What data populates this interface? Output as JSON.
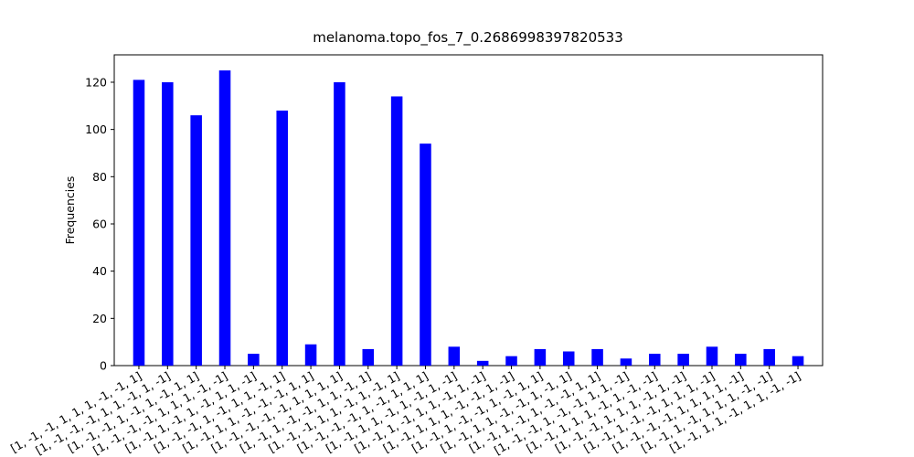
{
  "chart_data": {
    "type": "bar",
    "title": "melanoma.topo_fos_7_0.2686998397820533",
    "ylabel": "Frequencies",
    "categories": [
      "[1, -1, -1, 1, 1, 1, -1, -1, 1]",
      "[1, -1, -1, -1, 1, 1, -1, 1, -1]",
      "[1, -1, -1, 1, -1, 1, -1, 1, 1]",
      "[1, -1, -1, -1, 1, 1, 1, -1, -1]",
      "[1, -1, 1, -1, 1, -1, 1, 1, -1]",
      "[1, -1, -1, 1, -1, 1, 1, -1, 1]",
      "[1, -1, 1, 1, -1, -1, -1, 1, 1]",
      "[1, -1, -1, -1, -1, 1, 1, 1, 1]",
      "[1, -1, 1, -1, -1, 1, 1, -1, 1]",
      "[1, -1, -1, 1, 1, -1, 1, -1, 1]",
      "[1, -1, -1, -1, 1, -1, 1, 1, 1]",
      "[1, -1, 1, 1, -1, 1, -1, 1, -1]",
      "[1, -1, 1, -1, 1, 1, -1, 1, -1]",
      "[1, -1, 1, 1, 1, -1, -1, 1, -1]",
      "[1, -1, 1, -1, -1, 1, -1, 1, 1]",
      "[1, -1, 1, 1, -1, -1, 1, -1, 1]",
      "[1, -1, 1, -1, 1, -1, -1, 1, 1]",
      "[1, -1, -1, 1, -1, -1, 1, 1, -1]",
      "[1, -1, 1, 1, 1, -1, 1, -1, -1]",
      "[1, -1, -1, 1, 1, 1, -1, 1, -1]",
      "[1, -1, 1, -1, -1, 1, 1, 1, -1]",
      "[1, -1, -1, -1, 1, 1, 1, 1, -1]",
      "[1, -1, 1, -1, 1, 1, 1, -1, -1]",
      "[1, -1, 1, 1, -1, 1, 1, -1, -1]"
    ],
    "values": [
      121,
      120,
      106,
      125,
      5,
      108,
      9,
      120,
      7,
      114,
      94,
      8,
      2,
      4,
      7,
      6,
      7,
      3,
      5,
      5,
      8,
      5,
      7,
      4
    ],
    "color": "#0000ff",
    "ylim": [
      0,
      131.6
    ],
    "yticks": [
      0,
      20,
      40,
      60,
      80,
      100,
      120
    ]
  }
}
